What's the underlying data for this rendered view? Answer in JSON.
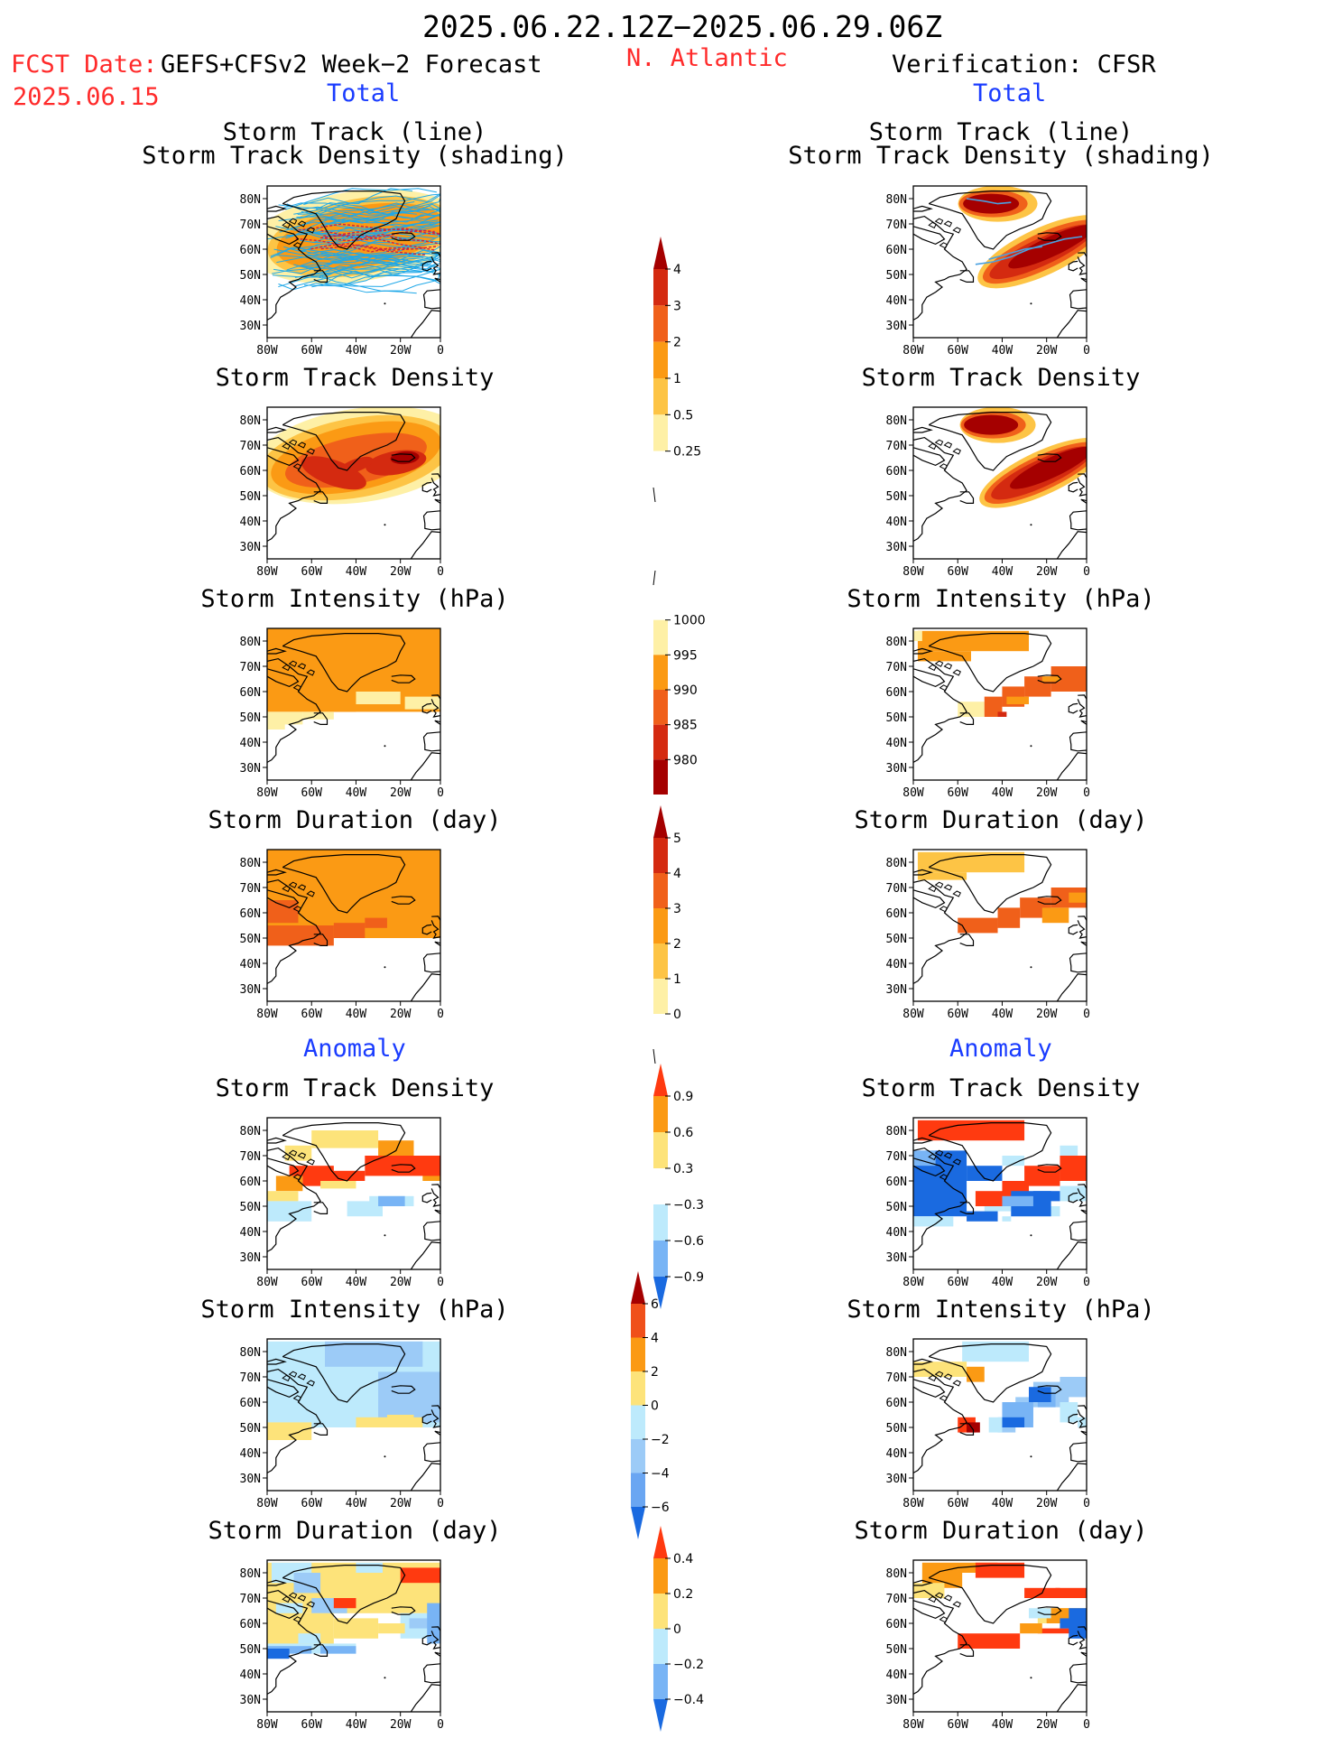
{
  "header": {
    "date_range": "2025.06.22.12Z−2025.06.29.06Z",
    "fcst_date_label": "FCST Date:",
    "fcst_date_value": "2025.06.15",
    "model": "GEFS+CFSv2 Week−2 Forecast",
    "region": "N. Atlantic",
    "verification": "Verification: CFSR"
  },
  "sections": {
    "total": "Total",
    "anomaly": "Anomaly"
  },
  "panel_titles": {
    "track_line": "Storm Track (line)",
    "track_shading": "Storm Track Density (shading)",
    "density": "Storm Track Density",
    "intensity": "Storm Intensity (hPa)",
    "duration": "Storm Duration (day)"
  },
  "axes": {
    "lat_ticks": [
      "80N",
      "70N",
      "60N",
      "50N",
      "40N",
      "30N"
    ],
    "lon_ticks": [
      "80W",
      "60W",
      "40W",
      "20W",
      "0"
    ]
  },
  "colorbars": [
    {
      "id": "density_total",
      "labels": [
        "4",
        "3",
        "2",
        "1",
        "0.5",
        "0.25"
      ],
      "colors": [
        "#a50000",
        "#d42a10",
        "#f0601a",
        "#fb9a14",
        "#fdc445",
        "#fef0a6",
        "#ffffff"
      ]
    },
    {
      "id": "intensity_total",
      "labels": [
        "1000",
        "995",
        "990",
        "985",
        "980"
      ],
      "colors": [
        "#ffffff",
        "#fef0a6",
        "#fb9a14",
        "#f0601a",
        "#d42a10",
        "#a50000"
      ]
    },
    {
      "id": "duration_total",
      "labels": [
        "5",
        "4",
        "3",
        "2",
        "1",
        "0"
      ],
      "colors": [
        "#a50000",
        "#d42a10",
        "#f0601a",
        "#fb9a14",
        "#fdc445",
        "#fef0a6",
        "#ffffff"
      ]
    },
    {
      "id": "density_anom",
      "labels": [
        "0.9",
        "0.6",
        "0.3",
        "−0.3",
        "−0.6",
        "−0.9"
      ],
      "colors": [
        "#ff3a10",
        "#fb9a14",
        "#fde37a",
        "#ffffff",
        "#bdeafc",
        "#78b4f5",
        "#1a6ae0"
      ]
    },
    {
      "id": "intensity_anom",
      "labels": [
        "6",
        "4",
        "2",
        "0",
        "−2",
        "−4",
        "−6"
      ],
      "colors": [
        "#a50000",
        "#f0501a",
        "#fb9a14",
        "#fde37a",
        "#bdeafc",
        "#9ccbf7",
        "#6aa6f2",
        "#1a6ae0"
      ]
    },
    {
      "id": "duration_anom",
      "labels": [
        "0.4",
        "0.2",
        "0",
        "−0.2",
        "−0.4"
      ],
      "colors": [
        "#ff3a10",
        "#fb9a14",
        "#fde37a",
        "#bdeafc",
        "#78b4f5",
        "#1a6ae0"
      ]
    }
  ]
}
